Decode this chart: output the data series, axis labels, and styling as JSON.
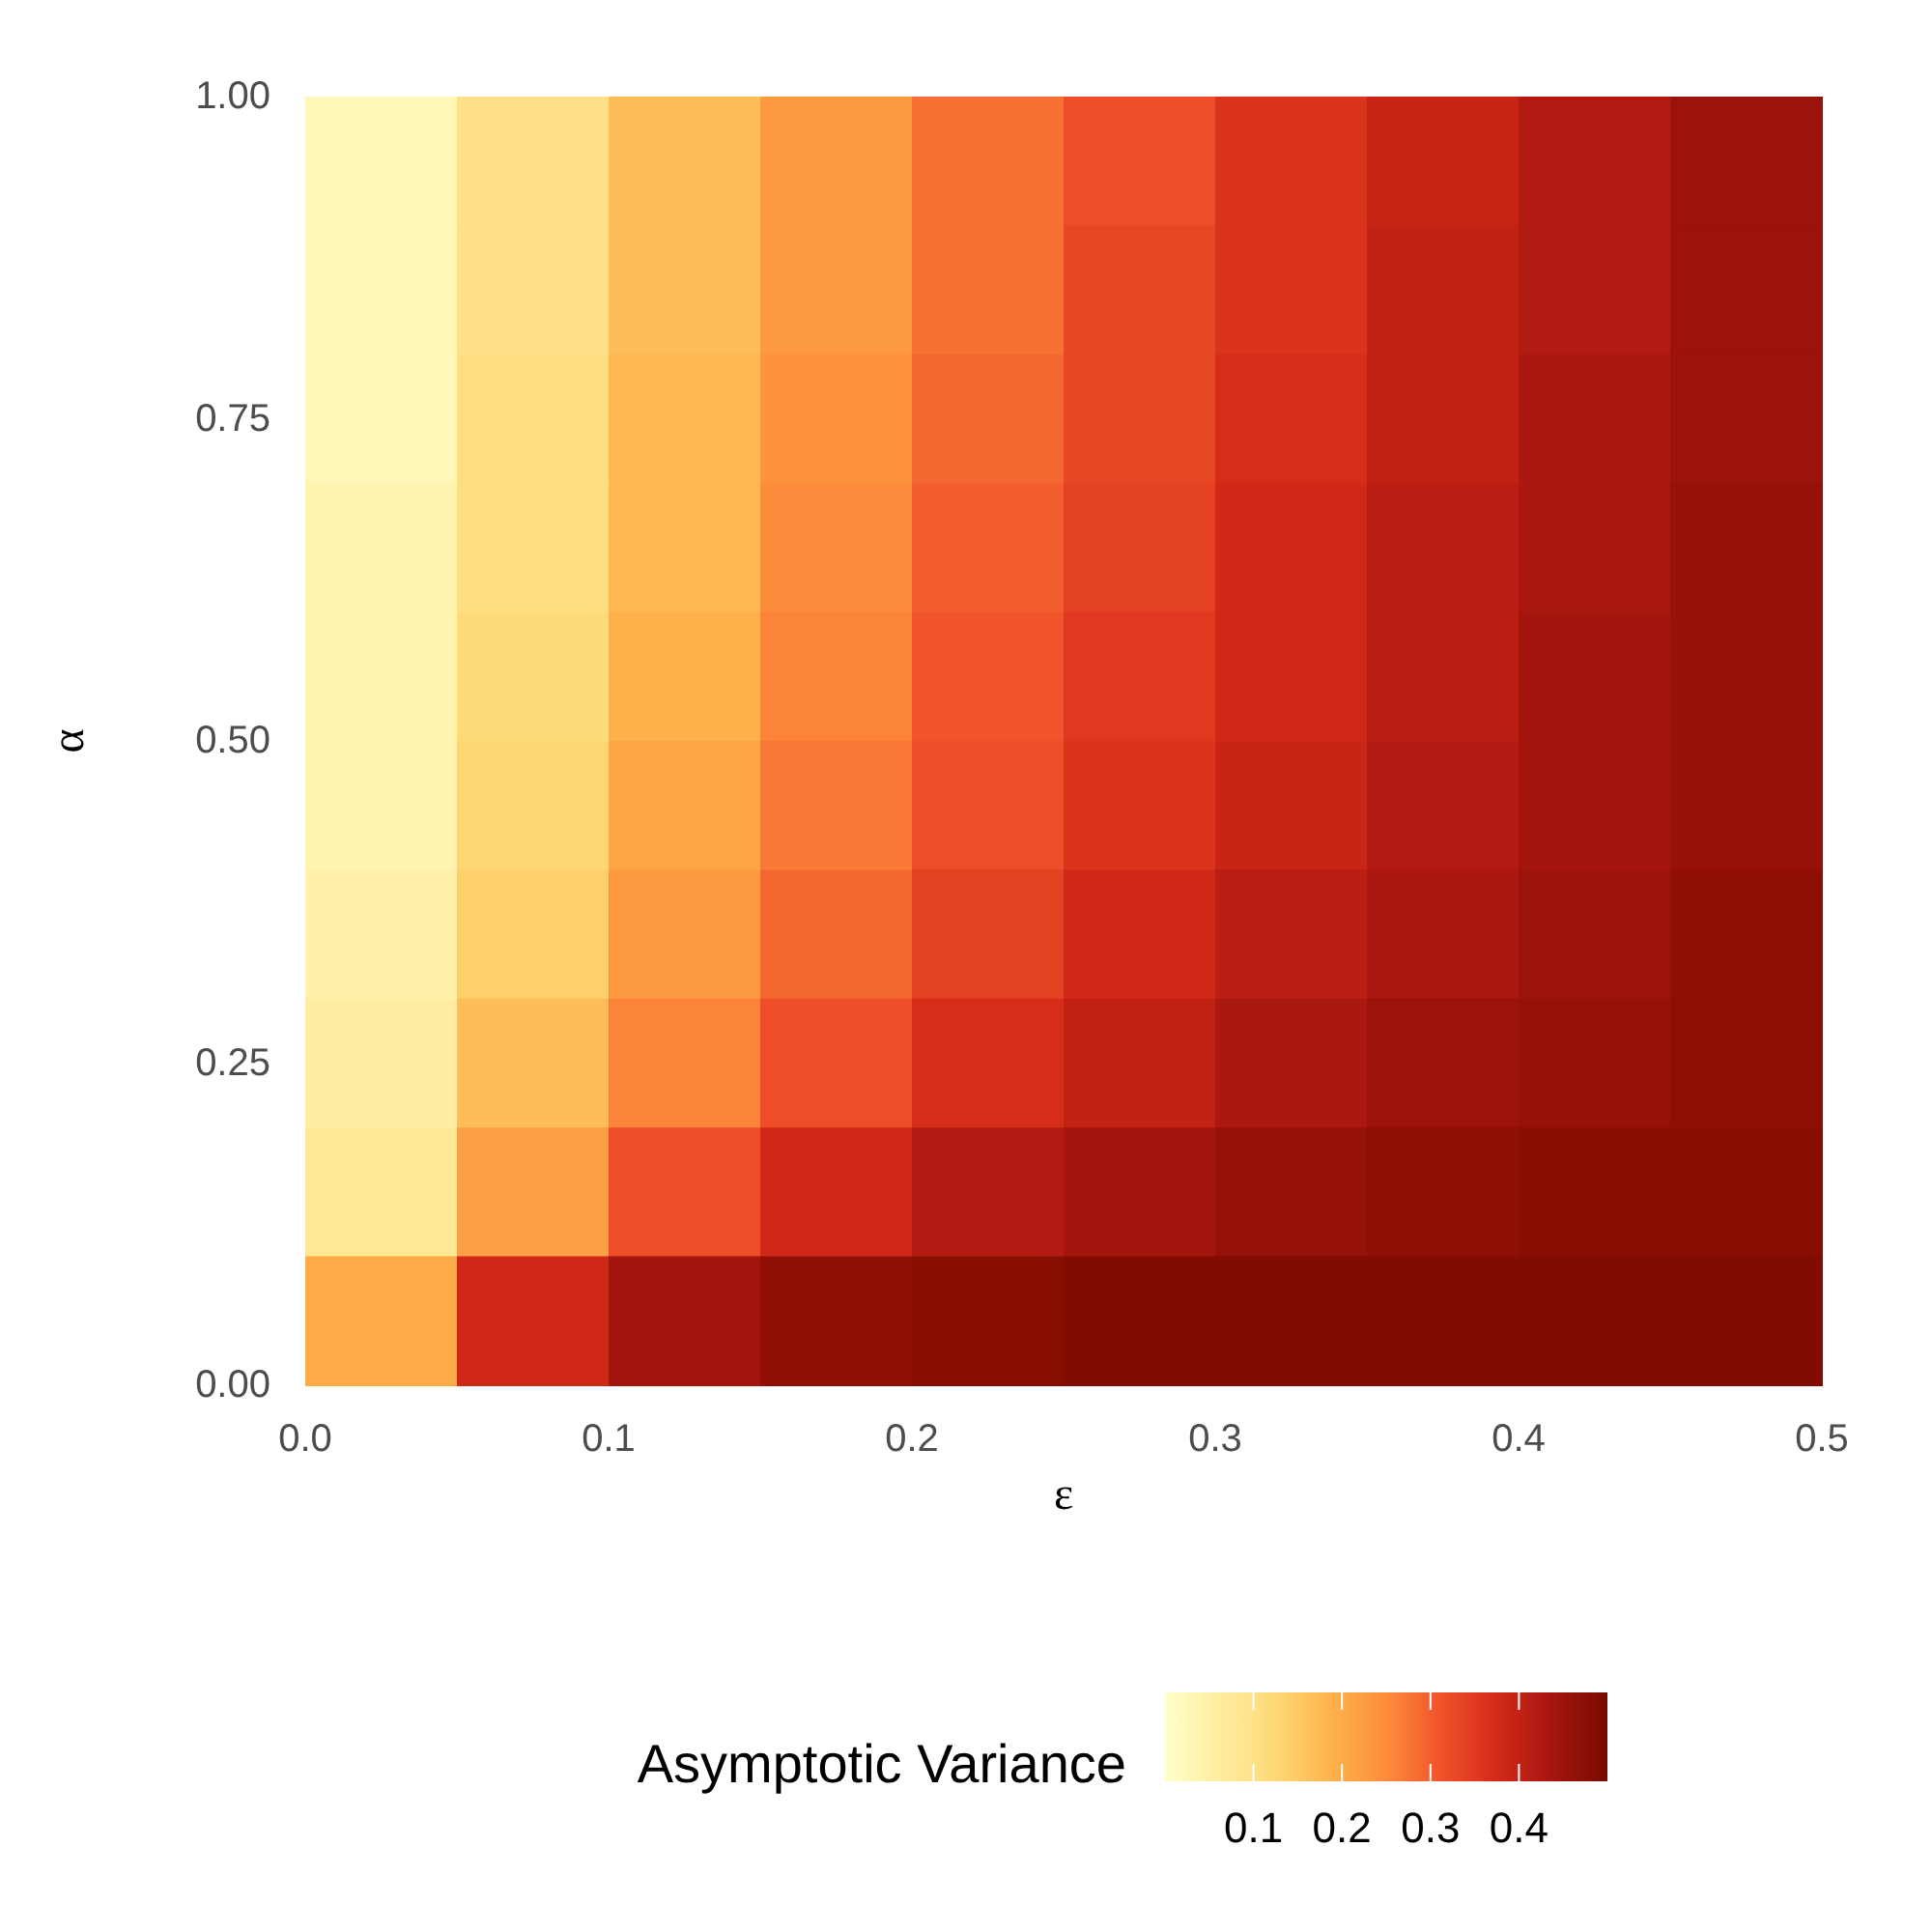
{
  "chart_data": {
    "type": "heatmap",
    "xlabel": "ε",
    "ylabel": "α",
    "clabel": "Asymptotic Variance",
    "xlim": [
      0,
      0.5
    ],
    "xticks": [
      {
        "value": 0,
        "label": "0.0"
      },
      {
        "value": 0.1,
        "label": "0.1"
      },
      {
        "value": 0.2,
        "label": "0.2"
      },
      {
        "value": 0.3,
        "label": "0.3"
      },
      {
        "value": 0.4,
        "label": "0.4"
      },
      {
        "value": 0.5,
        "label": "0.5"
      }
    ],
    "ylim": [
      0,
      1
    ],
    "yticks": [
      {
        "value": 0,
        "label": "0.00"
      },
      {
        "value": 0.25,
        "label": "0.25"
      },
      {
        "value": 0.5,
        "label": "0.50"
      },
      {
        "value": 0.75,
        "label": "0.75"
      },
      {
        "value": 1,
        "label": "1.00"
      }
    ],
    "clim": [
      0,
      0.5
    ],
    "cticks": [
      0.1,
      0.2,
      0.3,
      0.4
    ],
    "colors": [
      "#ffffcc",
      "#ffeda0",
      "#fed976",
      "#feb24c",
      "#fd8d3c",
      "#f0522a",
      "#d42a18",
      "#a5150e",
      "#7a0a00"
    ],
    "grid": false,
    "cells": [
      [
        0.03,
        0.1,
        0.17,
        0.23,
        0.28,
        0.32,
        0.36,
        0.39,
        0.42,
        0.45
      ],
      [
        0.03,
        0.1,
        0.17,
        0.23,
        0.28,
        0.33,
        0.36,
        0.4,
        0.42,
        0.45
      ],
      [
        0.03,
        0.11,
        0.18,
        0.24,
        0.29,
        0.33,
        0.37,
        0.4,
        0.43,
        0.45
      ],
      [
        0.04,
        0.11,
        0.18,
        0.25,
        0.3,
        0.34,
        0.38,
        0.41,
        0.43,
        0.46
      ],
      [
        0.04,
        0.12,
        0.19,
        0.26,
        0.31,
        0.35,
        0.38,
        0.41,
        0.44,
        0.46
      ],
      [
        0.04,
        0.13,
        0.21,
        0.27,
        0.32,
        0.36,
        0.39,
        0.42,
        0.44,
        0.46
      ],
      [
        0.05,
        0.14,
        0.23,
        0.29,
        0.34,
        0.38,
        0.41,
        0.43,
        0.45,
        0.47
      ],
      [
        0.06,
        0.17,
        0.26,
        0.32,
        0.37,
        0.4,
        0.43,
        0.45,
        0.46,
        0.47
      ],
      [
        0.08,
        0.22,
        0.32,
        0.38,
        0.42,
        0.44,
        0.46,
        0.47,
        0.48,
        0.48
      ],
      [
        0.2,
        0.38,
        0.44,
        0.47,
        0.48,
        0.49,
        0.49,
        0.49,
        0.49,
        0.49
      ]
    ]
  }
}
